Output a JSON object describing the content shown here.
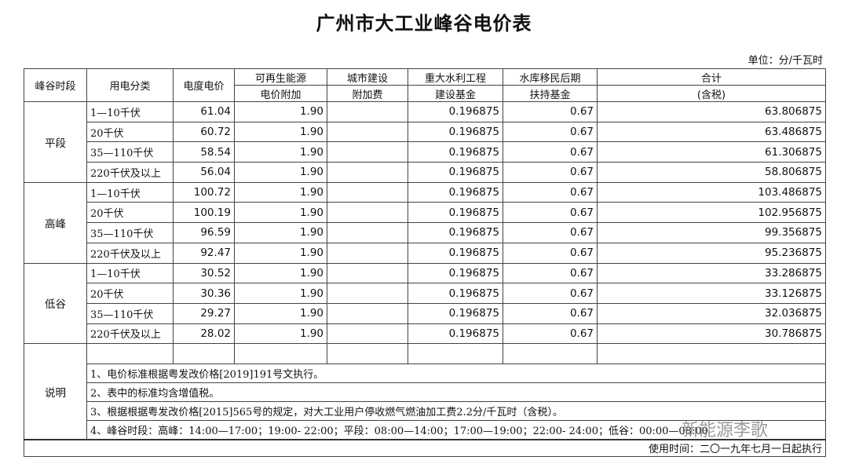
{
  "title": "广州市大工业峰谷电价表",
  "unit": "单位：分/千瓦时",
  "headers": {
    "period": "峰谷时段",
    "category": "用电分类",
    "price": "电度电价",
    "renew1": "可再生能源",
    "renew2": "电价附加",
    "city1": "城市建设",
    "city2": "附加费",
    "water1": "重大水利工程",
    "water2": "建设基金",
    "reservoir1": "水库移民后期",
    "reservoir2": "扶持基金",
    "total1": "合计",
    "total2": "(含税)"
  },
  "groups": [
    {
      "period": "平段",
      "rows": [
        {
          "category": "1—10千伏",
          "price": "61.04",
          "renew": "1.90",
          "city": "",
          "water": "0.196875",
          "reservoir": "0.67",
          "total": "63.806875"
        },
        {
          "category": "20千伏",
          "price": "60.72",
          "renew": "1.90",
          "city": "",
          "water": "0.196875",
          "reservoir": "0.67",
          "total": "63.486875"
        },
        {
          "category": "35—110千伏",
          "price": "58.54",
          "renew": "1.90",
          "city": "",
          "water": "0.196875",
          "reservoir": "0.67",
          "total": "61.306875"
        },
        {
          "category": "220千伏及以上",
          "price": "56.04",
          "renew": "1.90",
          "city": "",
          "water": "0.196875",
          "reservoir": "0.67",
          "total": "58.806875"
        }
      ]
    },
    {
      "period": "高峰",
      "rows": [
        {
          "category": "1—10千伏",
          "price": "100.72",
          "renew": "1.90",
          "city": "",
          "water": "0.196875",
          "reservoir": "0.67",
          "total": "103.486875"
        },
        {
          "category": "20千伏",
          "price": "100.19",
          "renew": "1.90",
          "city": "",
          "water": "0.196875",
          "reservoir": "0.67",
          "total": "102.956875"
        },
        {
          "category": "35—110千伏",
          "price": "96.59",
          "renew": "1.90",
          "city": "",
          "water": "0.196875",
          "reservoir": "0.67",
          "total": "99.356875"
        },
        {
          "category": "220千伏及以上",
          "price": "92.47",
          "renew": "1.90",
          "city": "",
          "water": "0.196875",
          "reservoir": "0.67",
          "total": "95.236875"
        }
      ]
    },
    {
      "period": "低谷",
      "rows": [
        {
          "category": "1—10千伏",
          "price": "30.52",
          "renew": "1.90",
          "city": "",
          "water": "0.196875",
          "reservoir": "0.67",
          "total": "33.286875"
        },
        {
          "category": "20千伏",
          "price": "30.36",
          "renew": "1.90",
          "city": "",
          "water": "0.196875",
          "reservoir": "0.67",
          "total": "33.126875"
        },
        {
          "category": "35—110千伏",
          "price": "29.27",
          "renew": "1.90",
          "city": "",
          "water": "0.196875",
          "reservoir": "0.67",
          "total": "32.036875"
        },
        {
          "category": "220千伏及以上",
          "price": "28.02",
          "renew": "1.90",
          "city": "",
          "water": "0.196875",
          "reservoir": "0.67",
          "total": "30.786875"
        }
      ]
    }
  ],
  "notes": {
    "label": "说明",
    "items": [
      "1、电价标准根据粤发改价格[2019]191号文执行。",
      "2、表中的标准均含增值税。",
      "3、根据根据粤发改价格[2015]565号的规定，对大工业用户停收燃气燃油加工费2.2分/千瓦时（含税）。",
      "4、峰谷时段：高峰：14:00—17:00；19:00- 22:00；平段：08:00—14:00；17:00—19:00；22:00- 24:00；低谷：00:00—08:00"
    ]
  },
  "footer": "使用时间：二〇一九年七月一日起执行",
  "watermark": "新能源李歌"
}
